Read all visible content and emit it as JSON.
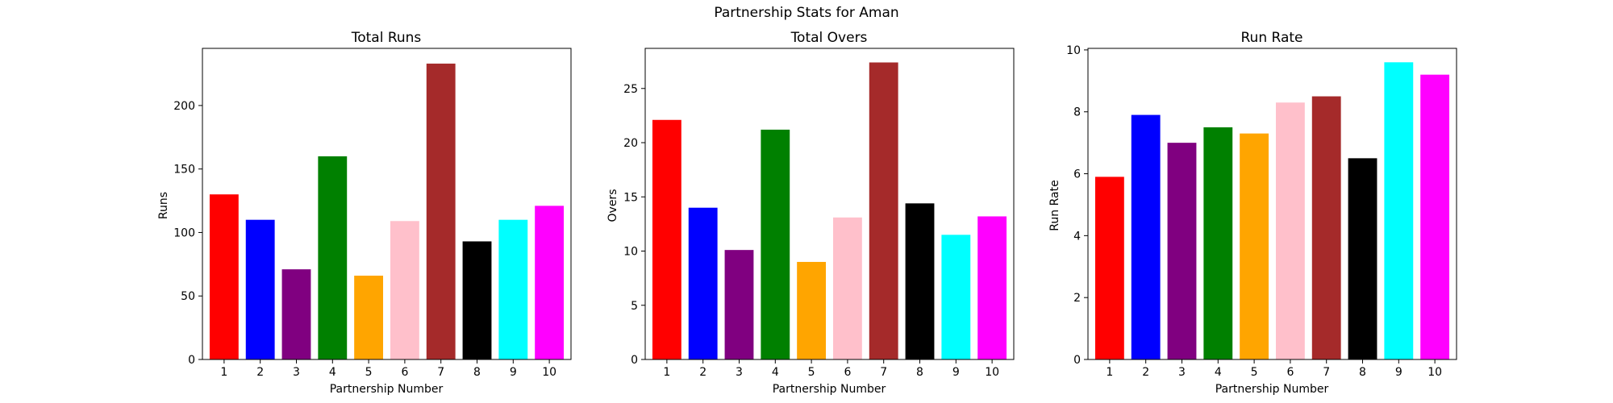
{
  "figure": {
    "title": "Partnership Stats for Aman"
  },
  "bar_colors": [
    "#ff0000",
    "#0000ff",
    "#800080",
    "#008000",
    "#ffa500",
    "#ffc0cb",
    "#a52a2a",
    "#000000",
    "#00ffff",
    "#ff00ff"
  ],
  "chart_data": [
    {
      "type": "bar",
      "title": "Total Runs",
      "xlabel": "Partnership Number",
      "ylabel": "Runs",
      "categories": [
        "1",
        "2",
        "3",
        "4",
        "5",
        "6",
        "7",
        "8",
        "9",
        "10"
      ],
      "values": [
        130,
        110,
        71,
        160,
        66,
        109,
        233,
        93,
        110,
        121
      ],
      "ylim": [
        0,
        245
      ],
      "yticks": [
        0,
        50,
        100,
        150,
        200
      ]
    },
    {
      "type": "bar",
      "title": "Total Overs",
      "xlabel": "Partnership Number",
      "ylabel": "Overs",
      "categories": [
        "1",
        "2",
        "3",
        "4",
        "5",
        "6",
        "7",
        "8",
        "9",
        "10"
      ],
      "values": [
        22.1,
        14.0,
        10.1,
        21.2,
        9.0,
        13.1,
        27.4,
        14.4,
        11.5,
        13.2
      ],
      "ylim": [
        0,
        28.7
      ],
      "yticks": [
        0,
        5,
        10,
        15,
        20,
        25
      ]
    },
    {
      "type": "bar",
      "title": "Run Rate",
      "xlabel": "Partnership Number",
      "ylabel": "Run Rate",
      "categories": [
        "1",
        "2",
        "3",
        "4",
        "5",
        "6",
        "7",
        "8",
        "9",
        "10"
      ],
      "values": [
        5.9,
        7.9,
        7.0,
        7.5,
        7.3,
        8.3,
        8.5,
        6.5,
        9.6,
        9.2
      ],
      "ylim": [
        0,
        10.05
      ],
      "yticks": [
        0,
        2,
        4,
        6,
        8,
        10
      ]
    }
  ]
}
